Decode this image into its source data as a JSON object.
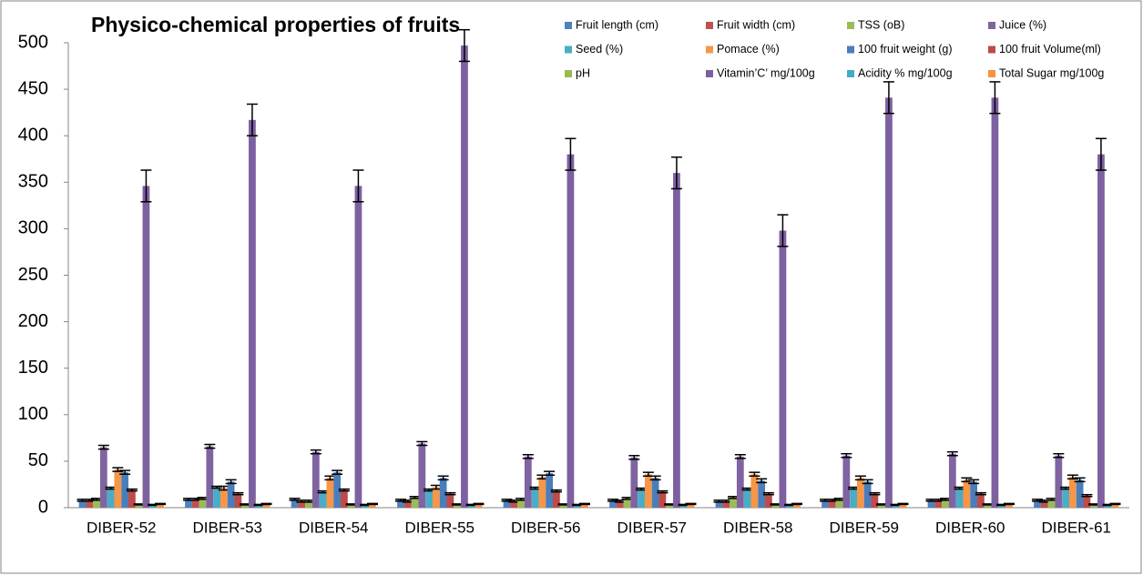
{
  "chart_data": {
    "type": "bar",
    "title": "Physico-chemical properties  of fruits",
    "categories": [
      "DIBER-52",
      "DIBER-53",
      "DIBER-54",
      "DIBER-55",
      "DIBER-56",
      "DIBER-57",
      "DIBER-58",
      "DIBER-59",
      "DIBER-60",
      "DIBER-61"
    ],
    "series": [
      {
        "name": "Fruit length (cm)",
        "color": "#4F81BD",
        "values": [
          8,
          9,
          9,
          8,
          8,
          8,
          7,
          8,
          8,
          8
        ],
        "errors": [
          1,
          1,
          1,
          1,
          1,
          1,
          1,
          1,
          1,
          1
        ]
      },
      {
        "name": "Fruit width (cm)",
        "color": "#C0504D",
        "values": [
          8,
          9,
          7,
          7,
          7,
          7,
          7,
          8,
          8,
          7
        ],
        "errors": [
          1,
          1,
          1,
          1,
          1,
          1,
          1,
          1,
          1,
          1
        ]
      },
      {
        "name": "TSS (oB)",
        "color": "#9BBB59",
        "values": [
          9,
          10,
          7,
          11,
          9,
          10,
          11,
          9,
          9,
          9
        ],
        "errors": [
          1,
          1,
          1,
          1,
          1,
          1,
          1,
          1,
          1,
          1
        ]
      },
      {
        "name": "Juice (%)",
        "color": "#8064A2",
        "values": [
          65,
          66,
          60,
          69,
          55,
          54,
          55,
          56,
          58,
          56
        ],
        "errors": [
          2,
          2,
          2,
          2,
          2,
          2,
          2,
          2,
          2,
          2
        ]
      },
      {
        "name": "Seed (%)",
        "color": "#4BACC6",
        "values": [
          21,
          22,
          17,
          19,
          21,
          20,
          20,
          21,
          21,
          21
        ],
        "errors": [
          1,
          1,
          1,
          1,
          1,
          1,
          1,
          1,
          1,
          1
        ]
      },
      {
        "name": "Pomace (%)",
        "color": "#F79646",
        "values": [
          41,
          21,
          32,
          22,
          33,
          36,
          36,
          32,
          30,
          33
        ],
        "errors": [
          2,
          2,
          2,
          2,
          2,
          2,
          2,
          2,
          2,
          2
        ]
      },
      {
        "name": "100 fruit weight (g)",
        "color": "#4A7EBB",
        "values": [
          38,
          28,
          38,
          32,
          37,
          32,
          29,
          28,
          28,
          30
        ],
        "errors": [
          2,
          2,
          2,
          2,
          2,
          2,
          2,
          2,
          2,
          2
        ]
      },
      {
        "name": "100 fruit Volume(ml)",
        "color": "#BE4B48",
        "values": [
          19,
          15,
          19,
          15,
          18,
          17,
          15,
          15,
          15,
          13
        ],
        "errors": [
          1,
          1,
          1,
          1,
          1,
          1,
          1,
          1,
          1,
          1
        ]
      },
      {
        "name": "pH",
        "color": "#98B954",
        "values": [
          3.5,
          3.5,
          3.5,
          3.5,
          3.5,
          3.5,
          3.5,
          3.5,
          3.5,
          3.5
        ],
        "errors": [
          0.5,
          0.5,
          0.5,
          0.5,
          0.5,
          0.5,
          0.5,
          0.5,
          0.5,
          0.5
        ]
      },
      {
        "name": "Vitamin’C’ mg/100g",
        "color": "#7D60A0",
        "values": [
          346,
          417,
          346,
          497,
          380,
          360,
          298,
          441,
          441,
          380
        ],
        "errors": [
          17,
          17,
          17,
          17,
          17,
          17,
          17,
          17,
          17,
          17
        ]
      },
      {
        "name": "Acidity % mg/100g",
        "color": "#46AAC5",
        "values": [
          3,
          3,
          3,
          3,
          3,
          3,
          3,
          3,
          3,
          3
        ],
        "errors": [
          0.5,
          0.5,
          0.5,
          0.5,
          0.5,
          0.5,
          0.5,
          0.5,
          0.5,
          0.5
        ]
      },
      {
        "name": "Total Sugar mg/100g",
        "color": "#F69240",
        "values": [
          4,
          4,
          4,
          4,
          4,
          4,
          4,
          4,
          4,
          4
        ],
        "errors": [
          0.5,
          0.5,
          0.5,
          0.5,
          0.5,
          0.5,
          0.5,
          0.5,
          0.5,
          0.5
        ]
      }
    ],
    "ylim": [
      0,
      500
    ],
    "yticks": [
      0,
      50,
      100,
      150,
      200,
      250,
      300,
      350,
      400,
      450,
      500
    ],
    "grid": false
  }
}
